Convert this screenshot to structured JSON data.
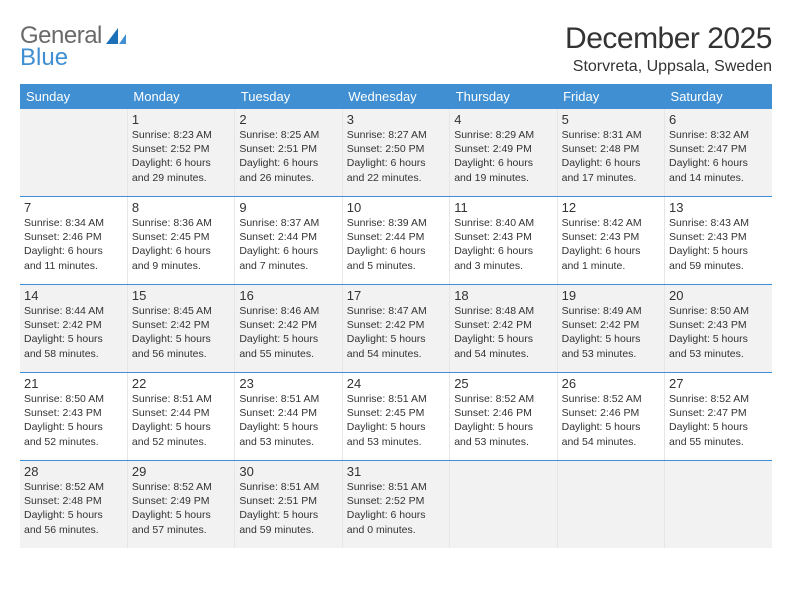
{
  "logo": {
    "word1": "General",
    "word2": "Blue"
  },
  "title": "December 2025",
  "location": "Storvreta, Uppsala, Sweden",
  "weekdays": [
    "Sunday",
    "Monday",
    "Tuesday",
    "Wednesday",
    "Thursday",
    "Friday",
    "Saturday"
  ],
  "colors": {
    "accent": "#3f8fd2",
    "shaded_bg": "#f2f2f2",
    "text": "#333333",
    "logo_gray": "#6a6a6a"
  },
  "weeks": [
    [
      {
        "day": "",
        "sunrise": "",
        "sunset": "",
        "daylight": "",
        "shaded": true
      },
      {
        "day": "1",
        "sunrise": "Sunrise: 8:23 AM",
        "sunset": "Sunset: 2:52 PM",
        "daylight": "Daylight: 6 hours and 29 minutes.",
        "shaded": true
      },
      {
        "day": "2",
        "sunrise": "Sunrise: 8:25 AM",
        "sunset": "Sunset: 2:51 PM",
        "daylight": "Daylight: 6 hours and 26 minutes.",
        "shaded": true
      },
      {
        "day": "3",
        "sunrise": "Sunrise: 8:27 AM",
        "sunset": "Sunset: 2:50 PM",
        "daylight": "Daylight: 6 hours and 22 minutes.",
        "shaded": true
      },
      {
        "day": "4",
        "sunrise": "Sunrise: 8:29 AM",
        "sunset": "Sunset: 2:49 PM",
        "daylight": "Daylight: 6 hours and 19 minutes.",
        "shaded": true
      },
      {
        "day": "5",
        "sunrise": "Sunrise: 8:31 AM",
        "sunset": "Sunset: 2:48 PM",
        "daylight": "Daylight: 6 hours and 17 minutes.",
        "shaded": true
      },
      {
        "day": "6",
        "sunrise": "Sunrise: 8:32 AM",
        "sunset": "Sunset: 2:47 PM",
        "daylight": "Daylight: 6 hours and 14 minutes.",
        "shaded": true
      }
    ],
    [
      {
        "day": "7",
        "sunrise": "Sunrise: 8:34 AM",
        "sunset": "Sunset: 2:46 PM",
        "daylight": "Daylight: 6 hours and 11 minutes.",
        "shaded": false
      },
      {
        "day": "8",
        "sunrise": "Sunrise: 8:36 AM",
        "sunset": "Sunset: 2:45 PM",
        "daylight": "Daylight: 6 hours and 9 minutes.",
        "shaded": false
      },
      {
        "day": "9",
        "sunrise": "Sunrise: 8:37 AM",
        "sunset": "Sunset: 2:44 PM",
        "daylight": "Daylight: 6 hours and 7 minutes.",
        "shaded": false
      },
      {
        "day": "10",
        "sunrise": "Sunrise: 8:39 AM",
        "sunset": "Sunset: 2:44 PM",
        "daylight": "Daylight: 6 hours and 5 minutes.",
        "shaded": false
      },
      {
        "day": "11",
        "sunrise": "Sunrise: 8:40 AM",
        "sunset": "Sunset: 2:43 PM",
        "daylight": "Daylight: 6 hours and 3 minutes.",
        "shaded": false
      },
      {
        "day": "12",
        "sunrise": "Sunrise: 8:42 AM",
        "sunset": "Sunset: 2:43 PM",
        "daylight": "Daylight: 6 hours and 1 minute.",
        "shaded": false
      },
      {
        "day": "13",
        "sunrise": "Sunrise: 8:43 AM",
        "sunset": "Sunset: 2:43 PM",
        "daylight": "Daylight: 5 hours and 59 minutes.",
        "shaded": false
      }
    ],
    [
      {
        "day": "14",
        "sunrise": "Sunrise: 8:44 AM",
        "sunset": "Sunset: 2:42 PM",
        "daylight": "Daylight: 5 hours and 58 minutes.",
        "shaded": true
      },
      {
        "day": "15",
        "sunrise": "Sunrise: 8:45 AM",
        "sunset": "Sunset: 2:42 PM",
        "daylight": "Daylight: 5 hours and 56 minutes.",
        "shaded": true
      },
      {
        "day": "16",
        "sunrise": "Sunrise: 8:46 AM",
        "sunset": "Sunset: 2:42 PM",
        "daylight": "Daylight: 5 hours and 55 minutes.",
        "shaded": true
      },
      {
        "day": "17",
        "sunrise": "Sunrise: 8:47 AM",
        "sunset": "Sunset: 2:42 PM",
        "daylight": "Daylight: 5 hours and 54 minutes.",
        "shaded": true
      },
      {
        "day": "18",
        "sunrise": "Sunrise: 8:48 AM",
        "sunset": "Sunset: 2:42 PM",
        "daylight": "Daylight: 5 hours and 54 minutes.",
        "shaded": true
      },
      {
        "day": "19",
        "sunrise": "Sunrise: 8:49 AM",
        "sunset": "Sunset: 2:42 PM",
        "daylight": "Daylight: 5 hours and 53 minutes.",
        "shaded": true
      },
      {
        "day": "20",
        "sunrise": "Sunrise: 8:50 AM",
        "sunset": "Sunset: 2:43 PM",
        "daylight": "Daylight: 5 hours and 53 minutes.",
        "shaded": true
      }
    ],
    [
      {
        "day": "21",
        "sunrise": "Sunrise: 8:50 AM",
        "sunset": "Sunset: 2:43 PM",
        "daylight": "Daylight: 5 hours and 52 minutes.",
        "shaded": false
      },
      {
        "day": "22",
        "sunrise": "Sunrise: 8:51 AM",
        "sunset": "Sunset: 2:44 PM",
        "daylight": "Daylight: 5 hours and 52 minutes.",
        "shaded": false
      },
      {
        "day": "23",
        "sunrise": "Sunrise: 8:51 AM",
        "sunset": "Sunset: 2:44 PM",
        "daylight": "Daylight: 5 hours and 53 minutes.",
        "shaded": false
      },
      {
        "day": "24",
        "sunrise": "Sunrise: 8:51 AM",
        "sunset": "Sunset: 2:45 PM",
        "daylight": "Daylight: 5 hours and 53 minutes.",
        "shaded": false
      },
      {
        "day": "25",
        "sunrise": "Sunrise: 8:52 AM",
        "sunset": "Sunset: 2:46 PM",
        "daylight": "Daylight: 5 hours and 53 minutes.",
        "shaded": false
      },
      {
        "day": "26",
        "sunrise": "Sunrise: 8:52 AM",
        "sunset": "Sunset: 2:46 PM",
        "daylight": "Daylight: 5 hours and 54 minutes.",
        "shaded": false
      },
      {
        "day": "27",
        "sunrise": "Sunrise: 8:52 AM",
        "sunset": "Sunset: 2:47 PM",
        "daylight": "Daylight: 5 hours and 55 minutes.",
        "shaded": false
      }
    ],
    [
      {
        "day": "28",
        "sunrise": "Sunrise: 8:52 AM",
        "sunset": "Sunset: 2:48 PM",
        "daylight": "Daylight: 5 hours and 56 minutes.",
        "shaded": true
      },
      {
        "day": "29",
        "sunrise": "Sunrise: 8:52 AM",
        "sunset": "Sunset: 2:49 PM",
        "daylight": "Daylight: 5 hours and 57 minutes.",
        "shaded": true
      },
      {
        "day": "30",
        "sunrise": "Sunrise: 8:51 AM",
        "sunset": "Sunset: 2:51 PM",
        "daylight": "Daylight: 5 hours and 59 minutes.",
        "shaded": true
      },
      {
        "day": "31",
        "sunrise": "Sunrise: 8:51 AM",
        "sunset": "Sunset: 2:52 PM",
        "daylight": "Daylight: 6 hours and 0 minutes.",
        "shaded": true
      },
      {
        "day": "",
        "sunrise": "",
        "sunset": "",
        "daylight": "",
        "shaded": true,
        "tail": true
      },
      {
        "day": "",
        "sunrise": "",
        "sunset": "",
        "daylight": "",
        "shaded": true,
        "tail": true
      },
      {
        "day": "",
        "sunrise": "",
        "sunset": "",
        "daylight": "",
        "shaded": true,
        "tail": true
      }
    ]
  ]
}
